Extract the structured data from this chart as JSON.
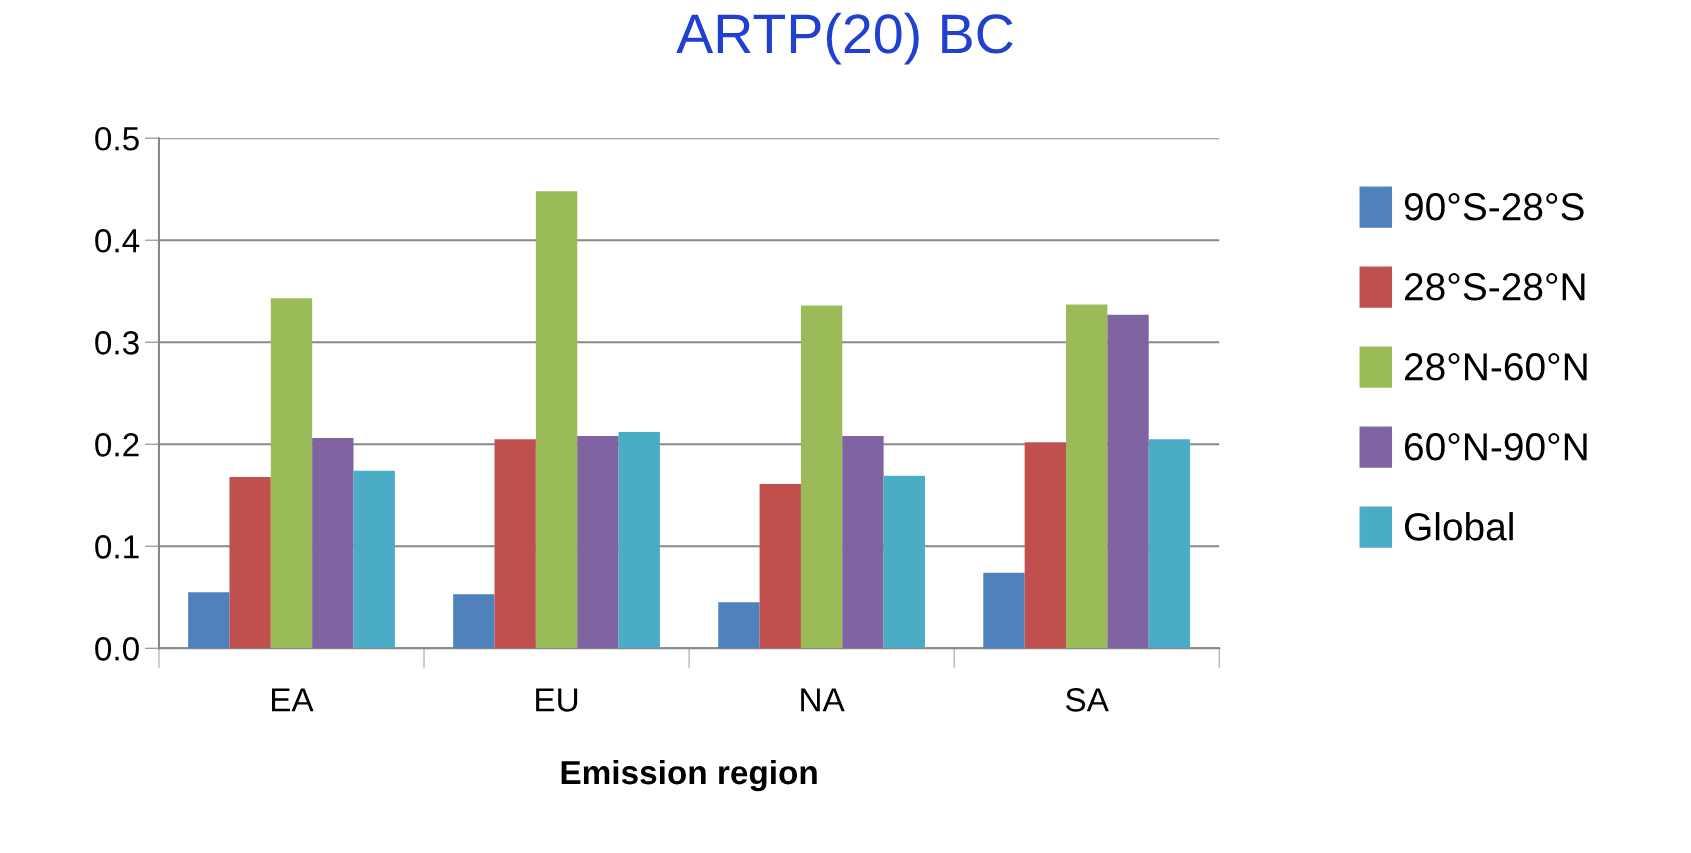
{
  "chart_data": {
    "type": "bar",
    "title": "ARTP(20) BC",
    "xlabel": "Emission region",
    "categories": [
      "EA",
      "EU",
      "NA",
      "SA"
    ],
    "series": [
      {
        "name": "90°S-28°S",
        "color": "#4f81bd",
        "values": [
          0.055,
          0.053,
          0.045,
          0.074
        ]
      },
      {
        "name": "28°S-28°N",
        "color": "#c0504d",
        "values": [
          0.168,
          0.205,
          0.161,
          0.202
        ]
      },
      {
        "name": "28°N-60°N",
        "color": "#9bbb59",
        "values": [
          0.343,
          0.448,
          0.336,
          0.337
        ]
      },
      {
        "name": "60°N-90°N",
        "color": "#8064a2",
        "values": [
          0.206,
          0.208,
          0.208,
          0.327
        ]
      },
      {
        "name": "Global",
        "color": "#4bacc6",
        "values": [
          0.174,
          0.212,
          0.169,
          0.205
        ]
      }
    ],
    "ylim": [
      0,
      0.5
    ],
    "yticks": [
      {
        "value": 0,
        "label": "0.0"
      },
      0.1,
      0.2,
      0.3,
      0.4,
      0.5
    ],
    "grid": "y",
    "legend": "right"
  }
}
